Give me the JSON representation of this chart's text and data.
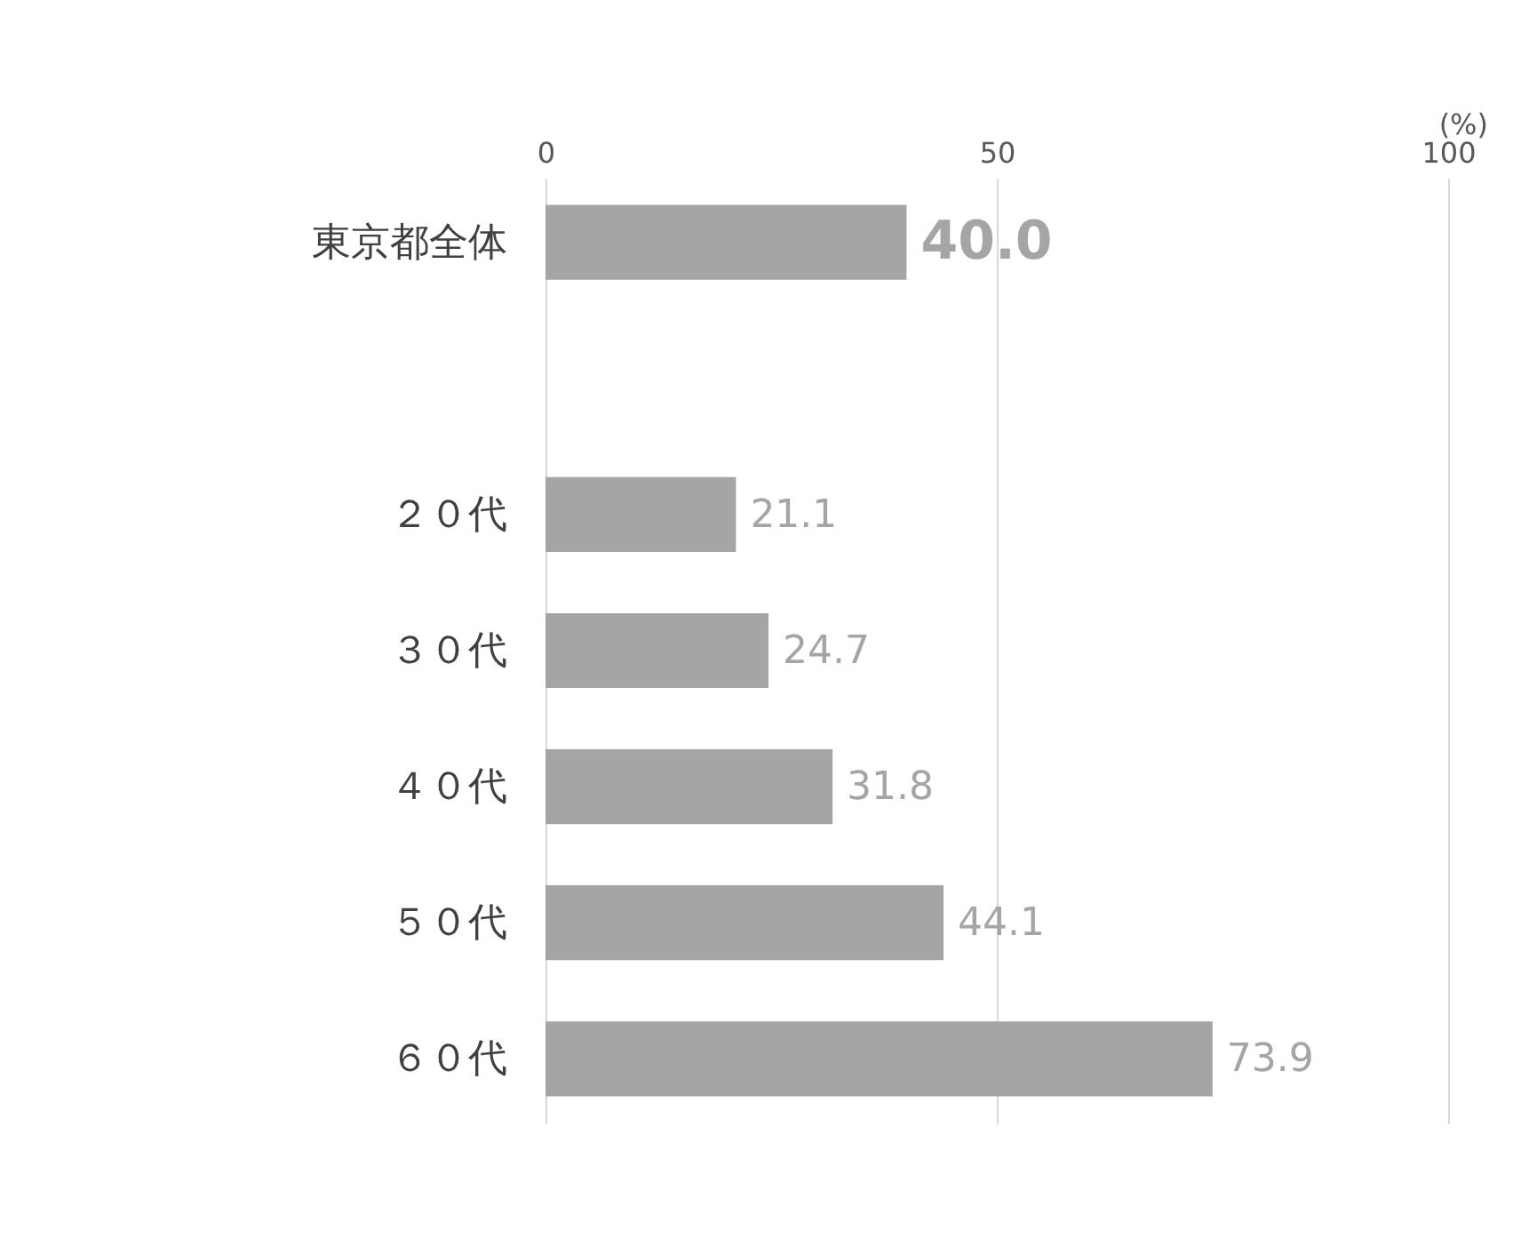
{
  "chart_data": {
    "type": "bar",
    "orientation": "horizontal",
    "xlabel": "(%)",
    "categories": [
      "東京都全体",
      null,
      "２０代",
      "３０代",
      "４０代",
      "５０代",
      "６０代"
    ],
    "values": [
      40.0,
      null,
      21.1,
      24.7,
      31.8,
      44.1,
      73.9
    ],
    "value_labels": [
      "40.0",
      null,
      "21.1",
      "24.7",
      "31.8",
      "44.1",
      "73.9"
    ],
    "color": "#a5a5a5",
    "xlim": [
      0,
      100
    ],
    "xticks": [
      0,
      50,
      100
    ],
    "grid": "x"
  }
}
